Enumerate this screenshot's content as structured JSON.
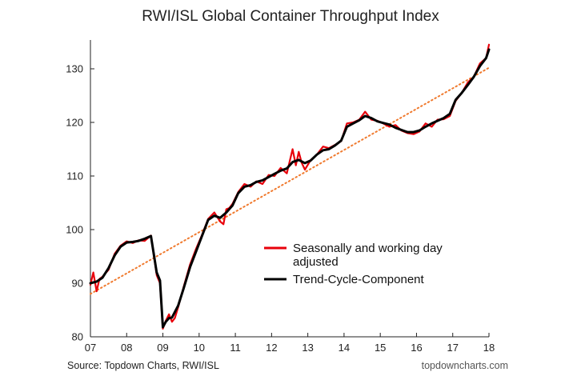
{
  "chart_data": {
    "type": "line",
    "title": "RWI/ISL Global Container Throughput Index",
    "xlabel": "",
    "ylabel": "",
    "x_ticks": [
      "07",
      "08",
      "09",
      "10",
      "11",
      "12",
      "13",
      "14",
      "15",
      "16",
      "17",
      "18"
    ],
    "xlim": [
      2007,
      2018
    ],
    "y_ticks": [
      80,
      90,
      100,
      110,
      120,
      130
    ],
    "ylim": [
      80,
      135
    ],
    "grid": false,
    "legend_position": "center-right",
    "series": [
      {
        "name": "Seasonally and working day adjusted",
        "color": "#e8000b",
        "x": [
          2007.0,
          2007.08,
          2007.17,
          2007.25,
          2007.33,
          2007.5,
          2007.67,
          2007.83,
          2008.0,
          2008.17,
          2008.33,
          2008.5,
          2008.67,
          2008.83,
          2008.92,
          2009.0,
          2009.08,
          2009.17,
          2009.25,
          2009.33,
          2009.42,
          2009.58,
          2009.75,
          2009.92,
          2010.08,
          2010.25,
          2010.42,
          2010.58,
          2010.67,
          2010.75,
          2010.83,
          2010.92,
          2011.08,
          2011.25,
          2011.42,
          2011.58,
          2011.75,
          2011.92,
          2012.08,
          2012.25,
          2012.42,
          2012.58,
          2012.67,
          2012.75,
          2012.83,
          2012.92,
          2013.08,
          2013.25,
          2013.42,
          2013.58,
          2013.75,
          2013.92,
          2014.08,
          2014.25,
          2014.42,
          2014.58,
          2014.75,
          2014.92,
          2015.08,
          2015.25,
          2015.42,
          2015.58,
          2015.75,
          2015.92,
          2016.08,
          2016.25,
          2016.42,
          2016.58,
          2016.75,
          2016.92,
          2017.08,
          2017.25,
          2017.42,
          2017.58,
          2017.75,
          2017.92,
          2018.0
        ],
        "values": [
          89.7,
          92.0,
          88.5,
          90.8,
          91.2,
          92.5,
          95.5,
          97.0,
          97.8,
          97.5,
          98.0,
          97.9,
          98.9,
          91.5,
          90.0,
          81.5,
          83.0,
          84.2,
          82.8,
          83.5,
          85.5,
          89.5,
          93.5,
          96.5,
          99.0,
          102.0,
          103.2,
          101.5,
          101.0,
          103.8,
          104.0,
          104.8,
          107.0,
          108.5,
          108.0,
          109.0,
          108.5,
          110.2,
          110.0,
          111.5,
          110.5,
          115.0,
          112.0,
          114.5,
          112.5,
          111.2,
          113.0,
          114.0,
          115.5,
          115.2,
          115.8,
          116.5,
          119.8,
          120.0,
          120.5,
          122.0,
          120.5,
          120.3,
          119.8,
          119.2,
          119.5,
          118.5,
          118.0,
          117.8,
          118.3,
          119.8,
          119.2,
          120.5,
          120.6,
          121.2,
          124.0,
          125.5,
          127.5,
          128.5,
          131.0,
          132.0,
          134.5
        ]
      },
      {
        "name": "Trend-Cycle-Component",
        "color": "#000000",
        "x": [
          2007.0,
          2007.17,
          2007.33,
          2007.5,
          2007.67,
          2007.83,
          2008.0,
          2008.17,
          2008.33,
          2008.5,
          2008.67,
          2008.83,
          2008.92,
          2009.0,
          2009.08,
          2009.17,
          2009.25,
          2009.42,
          2009.58,
          2009.75,
          2009.92,
          2010.08,
          2010.25,
          2010.42,
          2010.58,
          2010.75,
          2010.92,
          2011.08,
          2011.25,
          2011.42,
          2011.58,
          2011.75,
          2011.92,
          2012.08,
          2012.25,
          2012.42,
          2012.58,
          2012.75,
          2012.92,
          2013.08,
          2013.25,
          2013.42,
          2013.58,
          2013.75,
          2013.92,
          2014.08,
          2014.25,
          2014.42,
          2014.58,
          2014.75,
          2014.92,
          2015.08,
          2015.25,
          2015.42,
          2015.58,
          2015.75,
          2015.92,
          2016.08,
          2016.25,
          2016.42,
          2016.58,
          2016.75,
          2016.92,
          2017.08,
          2017.25,
          2017.42,
          2017.58,
          2017.75,
          2017.92,
          2018.0
        ],
        "values": [
          90.0,
          90.3,
          91.0,
          92.8,
          95.2,
          96.8,
          97.6,
          97.7,
          97.9,
          98.3,
          98.8,
          92.0,
          90.5,
          81.8,
          82.8,
          83.5,
          83.6,
          85.8,
          89.2,
          93.0,
          96.0,
          98.8,
          101.8,
          102.6,
          102.2,
          103.2,
          104.5,
          106.8,
          108.0,
          108.3,
          108.9,
          109.2,
          109.8,
          110.4,
          111.0,
          111.4,
          112.6,
          113.0,
          112.4,
          112.9,
          114.0,
          114.8,
          115.0,
          115.7,
          116.6,
          119.2,
          119.8,
          120.4,
          121.2,
          120.8,
          120.2,
          119.9,
          119.6,
          119.0,
          118.6,
          118.2,
          118.2,
          118.5,
          119.2,
          119.8,
          120.3,
          120.8,
          121.6,
          124.2,
          125.5,
          127.0,
          128.5,
          130.5,
          132.0,
          133.6
        ]
      },
      {
        "name": "",
        "style": "dotted-trendline",
        "color": "#f07a2e",
        "x": [
          2007.0,
          2018.0
        ],
        "values": [
          88.0,
          130.2
        ]
      }
    ],
    "legend_entries": [
      {
        "label_lines": [
          "Seasonally and working day",
          "adjusted"
        ],
        "color": "#e8000b"
      },
      {
        "label_lines": [
          "Trend-Cycle-Component"
        ],
        "color": "#000000"
      }
    ]
  },
  "footer": {
    "source": "Source: Topdown Charts, RWI/ISL",
    "brand": "topdowncharts.com"
  }
}
